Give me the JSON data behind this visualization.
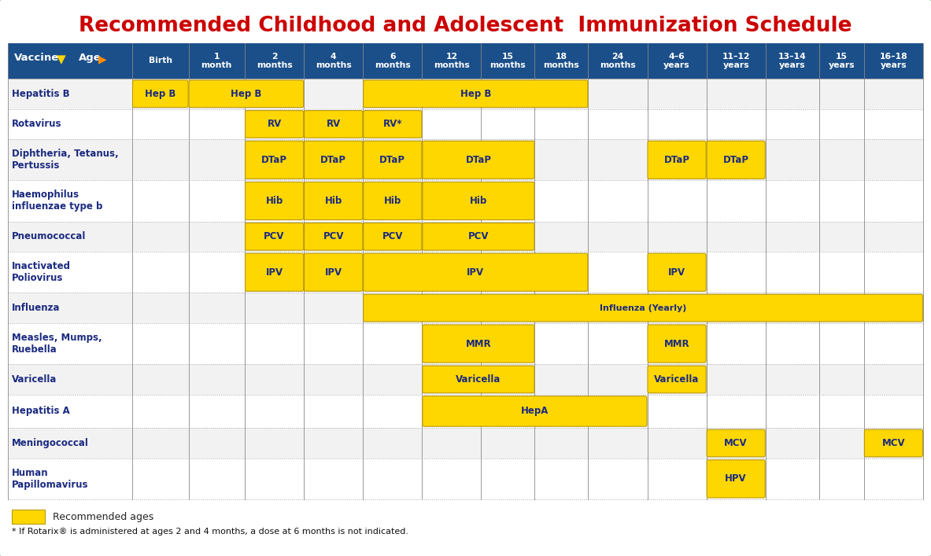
{
  "title": "Recommended Childhood and Adolescent  Immunization Schedule",
  "title_color": "#CC0000",
  "bg_color": "#FFFFFF",
  "border_color": "#55BB55",
  "header_bg": "#1B4F8A",
  "header_text_color": "#FFFFFF",
  "yellow": "#FFD700",
  "col_labels": [
    "Birth",
    "1\nmonth",
    "2\nmonths",
    "4\nmonths",
    "6\nmonths",
    "12\nmonths",
    "15\nmonths",
    "18\nmonths",
    "24\nmonths",
    "4–6\nyears",
    "11–12\nyears",
    "13–14\nyears",
    "15\nyears",
    "16–18\nyears"
  ],
  "vaccines": [
    "Hepatitis B",
    "Rotavirus",
    "Diphtheria, Tetanus,\nPertussis",
    "Haemophilus\ninfluenzae type b",
    "Pneumococcal",
    "Inactivated\nPoliovirus",
    "Influenza",
    "Measles, Mumps,\nRuebella",
    "Varicella",
    "Hepatitis A",
    "Meningococcal",
    "Human\nPapillomavirus"
  ],
  "bars": [
    {
      "vi": 0,
      "cs": 0,
      "ce": 0,
      "label": "Hep B"
    },
    {
      "vi": 0,
      "cs": 1,
      "ce": 2,
      "label": "Hep B"
    },
    {
      "vi": 0,
      "cs": 4,
      "ce": 7,
      "label": "Hep B"
    },
    {
      "vi": 1,
      "cs": 2,
      "ce": 2,
      "label": "RV"
    },
    {
      "vi": 1,
      "cs": 3,
      "ce": 3,
      "label": "RV"
    },
    {
      "vi": 1,
      "cs": 4,
      "ce": 4,
      "label": "RV*"
    },
    {
      "vi": 2,
      "cs": 2,
      "ce": 2,
      "label": "DTaP"
    },
    {
      "vi": 2,
      "cs": 3,
      "ce": 3,
      "label": "DTaP"
    },
    {
      "vi": 2,
      "cs": 4,
      "ce": 4,
      "label": "DTaP"
    },
    {
      "vi": 2,
      "cs": 5,
      "ce": 6,
      "label": "DTaP"
    },
    {
      "vi": 2,
      "cs": 9,
      "ce": 9,
      "label": "DTaP"
    },
    {
      "vi": 2,
      "cs": 10,
      "ce": 10,
      "label": "DTaP"
    },
    {
      "vi": 3,
      "cs": 2,
      "ce": 2,
      "label": "Hib"
    },
    {
      "vi": 3,
      "cs": 3,
      "ce": 3,
      "label": "Hib"
    },
    {
      "vi": 3,
      "cs": 4,
      "ce": 4,
      "label": "Hib"
    },
    {
      "vi": 3,
      "cs": 5,
      "ce": 6,
      "label": "Hib"
    },
    {
      "vi": 4,
      "cs": 2,
      "ce": 2,
      "label": "PCV"
    },
    {
      "vi": 4,
      "cs": 3,
      "ce": 3,
      "label": "PCV"
    },
    {
      "vi": 4,
      "cs": 4,
      "ce": 4,
      "label": "PCV"
    },
    {
      "vi": 4,
      "cs": 5,
      "ce": 6,
      "label": "PCV"
    },
    {
      "vi": 5,
      "cs": 2,
      "ce": 2,
      "label": "IPV"
    },
    {
      "vi": 5,
      "cs": 3,
      "ce": 3,
      "label": "IPV"
    },
    {
      "vi": 5,
      "cs": 4,
      "ce": 7,
      "label": "IPV"
    },
    {
      "vi": 5,
      "cs": 9,
      "ce": 9,
      "label": "IPV"
    },
    {
      "vi": 6,
      "cs": 4,
      "ce": 13,
      "label": "Influenza (Yearly)"
    },
    {
      "vi": 7,
      "cs": 5,
      "ce": 6,
      "label": "MMR"
    },
    {
      "vi": 7,
      "cs": 9,
      "ce": 9,
      "label": "MMR"
    },
    {
      "vi": 8,
      "cs": 5,
      "ce": 6,
      "label": "Varicella"
    },
    {
      "vi": 8,
      "cs": 9,
      "ce": 9,
      "label": "Varicella"
    },
    {
      "vi": 9,
      "cs": 5,
      "ce": 8,
      "label": "HepA"
    },
    {
      "vi": 10,
      "cs": 10,
      "ce": 10,
      "label": "MCV"
    },
    {
      "vi": 10,
      "cs": 13,
      "ce": 13,
      "label": "MCV"
    },
    {
      "vi": 11,
      "cs": 10,
      "ce": 10,
      "label": "HPV"
    }
  ],
  "footnote": "* If Rotarix® is administered at ages 2 and 4 months, a dose at 6 months is not indicated.",
  "legend_label": "Recommended ages"
}
